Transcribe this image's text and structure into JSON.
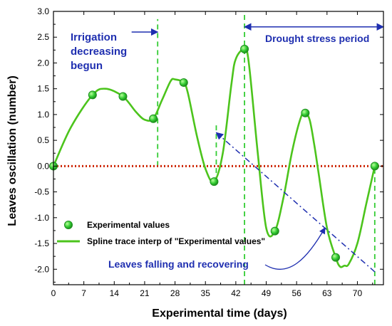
{
  "chart_data": {
    "type": "line",
    "xlabel": "Experimental time (days)",
    "ylabel": "Leaves oscillation (number)",
    "xlim": [
      0,
      76
    ],
    "ylim": [
      -2.3,
      3.0
    ],
    "x_ticks": [
      0,
      7,
      14,
      21,
      28,
      35,
      42,
      49,
      56,
      63,
      70
    ],
    "x_tick_labels": [
      "0",
      "7",
      "14",
      "21",
      "28",
      "35",
      "42",
      "49",
      "56",
      "63",
      "70"
    ],
    "y_ticks": [
      -2.0,
      -1.5,
      -1.0,
      -0.5,
      0.0,
      0.5,
      1.0,
      1.5,
      2.0,
      2.5,
      3.0
    ],
    "y_tick_labels": [
      "-2.0",
      "-1.5",
      "-1.0",
      "-0.5",
      "0.0",
      "0.5",
      "1.0",
      "1.5",
      "2.0",
      "2.5",
      "3.0"
    ],
    "series": [
      {
        "name": "Experimental values",
        "kind": "scatter",
        "color": "#33cc33",
        "x": [
          0,
          9,
          16,
          23,
          30,
          37,
          44,
          51,
          58,
          65,
          74
        ],
        "y": [
          0.0,
          1.38,
          1.35,
          0.92,
          1.62,
          -0.3,
          2.27,
          -1.26,
          1.03,
          -1.77,
          0.0
        ]
      },
      {
        "name": "Spline trace interp of \"Experimental values\"",
        "kind": "line",
        "color": "#4cc41c",
        "x": [
          0,
          4,
          9,
          12,
          16,
          19,
          21,
          23,
          25,
          27,
          28,
          30,
          31,
          33,
          35,
          37,
          39,
          41,
          42,
          44,
          45,
          47,
          49,
          51,
          53,
          55,
          57,
          58,
          59,
          60,
          61,
          63,
          65,
          66,
          67,
          68,
          70,
          72,
          74
        ],
        "y": [
          0.0,
          0.75,
          1.38,
          1.5,
          1.35,
          1.05,
          0.9,
          0.92,
          1.28,
          1.65,
          1.68,
          1.62,
          1.4,
          0.6,
          -0.05,
          -0.3,
          0.25,
          1.6,
          2.08,
          2.27,
          2.0,
          0.3,
          -1.2,
          -1.26,
          -0.6,
          0.3,
          0.95,
          1.03,
          0.9,
          0.45,
          -0.1,
          -1.2,
          -1.77,
          -1.95,
          -1.93,
          -1.9,
          -1.5,
          -0.75,
          0.0
        ]
      }
    ],
    "reference_line": {
      "y": 0.0,
      "color": "#cc2200",
      "style": "dotted"
    },
    "vertical_markers": [
      {
        "x": 24,
        "color": "#33cc33",
        "style": "dashed",
        "from": 0.0,
        "to": 2.85
      },
      {
        "x": 37.5,
        "color": "#33cc33",
        "style": "dashed",
        "from": -0.3,
        "to": 0.85
      },
      {
        "x": 44,
        "color": "#33cc33",
        "style": "dashed",
        "from": -2.3,
        "to": 3.0
      },
      {
        "x": 74,
        "color": "#33cc33",
        "style": "dashed",
        "from": -2.3,
        "to": 0.0
      }
    ],
    "legend": {
      "position": "bottom-left",
      "items": [
        {
          "label": "Experimental values",
          "marker": "circle",
          "color": "#33cc33"
        },
        {
          "label": "Spline trace interp of \"Experimental values\"",
          "marker": "line",
          "color": "#4cc41c"
        }
      ]
    },
    "annotations": [
      {
        "id": "irrigation",
        "lines": [
          "Irrigation",
          "decreasing",
          "begun"
        ],
        "color": "#1f2fb0"
      },
      {
        "id": "drought",
        "lines": [
          "Drought stress period"
        ],
        "color": "#1f2fb0"
      },
      {
        "id": "falling",
        "lines": [
          "Leaves falling and recovering"
        ],
        "color": "#1f2fb0"
      }
    ],
    "arrows": [
      {
        "id": "irrigation-arrow",
        "from": [
          18,
          2.6
        ],
        "to": [
          24,
          2.6
        ],
        "style": "solid",
        "color": "#1f2fb0"
      },
      {
        "id": "drought-arrow",
        "from": [
          44,
          2.7
        ],
        "to": [
          76,
          2.7
        ],
        "style": "solid",
        "double": true,
        "color": "#1f2fb0"
      },
      {
        "id": "diagonal-arrow",
        "from": [
          74,
          -2.05
        ],
        "to": [
          37.5,
          0.65
        ],
        "style": "dashdot",
        "color": "#1f2fb0"
      }
    ],
    "grid": false
  }
}
